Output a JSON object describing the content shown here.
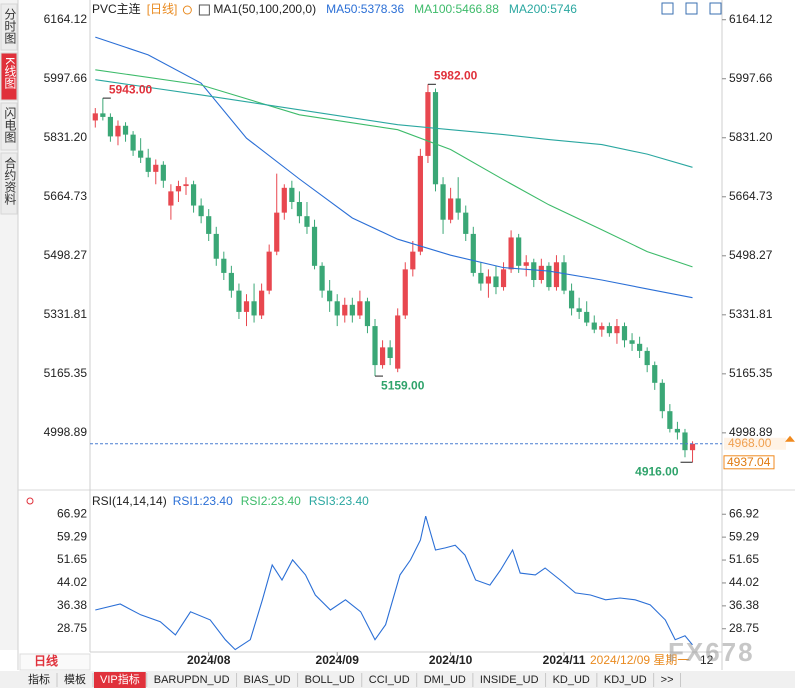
{
  "sidebar_tabs": [
    "分时图",
    "K线图",
    "闪电图",
    "合约资料"
  ],
  "active_tab": 1,
  "chart_data": [
    {
      "type": "candlestick",
      "title": "PVC主连",
      "period": "[日线]",
      "indicator": "MA1(50,100,200,0)",
      "up_color": "#e8474f",
      "down_color": "#3aa776",
      "candles": [
        [
          5880,
          5915,
          5860,
          5900
        ],
        [
          5900,
          5943,
          5880,
          5890
        ],
        [
          5890,
          5900,
          5820,
          5835
        ],
        [
          5835,
          5880,
          5810,
          5865
        ],
        [
          5865,
          5875,
          5820,
          5840
        ],
        [
          5840,
          5850,
          5780,
          5795
        ],
        [
          5795,
          5830,
          5760,
          5775
        ],
        [
          5775,
          5800,
          5720,
          5735
        ],
        [
          5735,
          5770,
          5700,
          5755
        ],
        [
          5755,
          5765,
          5690,
          5710
        ],
        [
          5640,
          5700,
          5600,
          5680
        ],
        [
          5680,
          5710,
          5650,
          5695
        ],
        [
          5695,
          5720,
          5670,
          5700
        ],
        [
          5700,
          5710,
          5620,
          5640
        ],
        [
          5640,
          5660,
          5590,
          5610
        ],
        [
          5610,
          5630,
          5540,
          5560
        ],
        [
          5560,
          5580,
          5470,
          5490
        ],
        [
          5490,
          5510,
          5430,
          5450
        ],
        [
          5450,
          5470,
          5380,
          5400
        ],
        [
          5400,
          5420,
          5320,
          5340
        ],
        [
          5340,
          5390,
          5300,
          5370
        ],
        [
          5370,
          5420,
          5310,
          5330
        ],
        [
          5330,
          5420,
          5320,
          5400
        ],
        [
          5400,
          5530,
          5390,
          5510
        ],
        [
          5510,
          5730,
          5500,
          5620
        ],
        [
          5620,
          5700,
          5600,
          5690
        ],
        [
          5690,
          5710,
          5630,
          5650
        ],
        [
          5650,
          5680,
          5590,
          5610
        ],
        [
          5610,
          5650,
          5560,
          5580
        ],
        [
          5580,
          5600,
          5460,
          5470
        ],
        [
          5470,
          5480,
          5380,
          5400
        ],
        [
          5400,
          5430,
          5340,
          5370
        ],
        [
          5370,
          5390,
          5300,
          5330
        ],
        [
          5330,
          5380,
          5310,
          5360
        ],
        [
          5360,
          5380,
          5310,
          5330
        ],
        [
          5330,
          5400,
          5320,
          5370
        ],
        [
          5370,
          5380,
          5280,
          5300
        ],
        [
          5300,
          5320,
          5159,
          5190
        ],
        [
          5190,
          5260,
          5180,
          5240
        ],
        [
          5240,
          5260,
          5190,
          5210
        ],
        [
          5180,
          5350,
          5170,
          5330
        ],
        [
          5330,
          5480,
          5320,
          5460
        ],
        [
          5460,
          5540,
          5440,
          5510
        ],
        [
          5510,
          5800,
          5500,
          5780
        ],
        [
          5780,
          5982,
          5760,
          5960
        ],
        [
          5960,
          5970,
          5680,
          5700
        ],
        [
          5700,
          5720,
          5560,
          5600
        ],
        [
          5600,
          5690,
          5590,
          5660
        ],
        [
          5660,
          5720,
          5600,
          5620
        ],
        [
          5620,
          5640,
          5540,
          5560
        ],
        [
          5560,
          5580,
          5440,
          5450
        ],
        [
          5450,
          5480,
          5400,
          5420
        ],
        [
          5420,
          5460,
          5380,
          5440
        ],
        [
          5440,
          5470,
          5390,
          5410
        ],
        [
          5410,
          5480,
          5400,
          5460
        ],
        [
          5460,
          5570,
          5450,
          5550
        ],
        [
          5550,
          5560,
          5450,
          5470
        ],
        [
          5470,
          5500,
          5440,
          5480
        ],
        [
          5480,
          5490,
          5410,
          5430
        ],
        [
          5430,
          5490,
          5420,
          5470
        ],
        [
          5470,
          5480,
          5400,
          5410
        ],
        [
          5410,
          5500,
          5400,
          5480
        ],
        [
          5480,
          5500,
          5390,
          5400
        ],
        [
          5400,
          5420,
          5330,
          5350
        ],
        [
          5350,
          5380,
          5320,
          5340
        ],
        [
          5340,
          5370,
          5300,
          5310
        ],
        [
          5310,
          5330,
          5280,
          5290
        ],
        [
          5290,
          5310,
          5270,
          5300
        ],
        [
          5300,
          5310,
          5270,
          5280
        ],
        [
          5280,
          5320,
          5250,
          5300
        ],
        [
          5300,
          5310,
          5240,
          5260
        ],
        [
          5260,
          5280,
          5230,
          5250
        ],
        [
          5250,
          5270,
          5210,
          5230
        ],
        [
          5230,
          5240,
          5170,
          5190
        ],
        [
          5190,
          5200,
          5120,
          5140
        ],
        [
          5140,
          5150,
          5040,
          5060
        ],
        [
          5060,
          5080,
          5000,
          5010
        ],
        [
          5010,
          5030,
          4980,
          5000
        ],
        [
          5000,
          5010,
          4930,
          4950
        ],
        [
          4950,
          4975,
          4916,
          4968
        ]
      ],
      "series": [
        {
          "name": "MA50:5378.36",
          "color": "#2b6fd6",
          "x": [
            0,
            7,
            14,
            20,
            27,
            34,
            40,
            47,
            54,
            60,
            67,
            73,
            79
          ],
          "values": [
            6115,
            6065,
            5985,
            5830,
            5715,
            5605,
            5545,
            5500,
            5465,
            5455,
            5430,
            5405,
            5380
          ]
        },
        {
          "name": "MA100:5466.88",
          "color": "#3dbb6a",
          "x": [
            0,
            14,
            27,
            40,
            47,
            54,
            60,
            67,
            73,
            79
          ],
          "values": [
            6023,
            5980,
            5896,
            5854,
            5798,
            5713,
            5642,
            5572,
            5510,
            5467
          ]
        },
        {
          "name": "MA200:5746",
          "color": "#2aa7a0",
          "x": [
            0,
            14,
            27,
            40,
            47,
            54,
            60,
            67,
            73,
            79
          ],
          "values": [
            5995,
            5952,
            5910,
            5868,
            5854,
            5840,
            5826,
            5812,
            5785,
            5748
          ]
        }
      ],
      "xlim": [
        -0.7,
        82.5
      ],
      "ylim": [
        4880,
        6200
      ],
      "yticks": [
        6164.12,
        5997.66,
        {
          "value": 5831.2,
          "label": "5831.20"
        },
        5664.73,
        5498.27,
        5331.81,
        5165.35,
        4998.89
      ],
      "annotations": [
        {
          "x": 1,
          "value": 5943,
          "label": "5943.00"
        },
        {
          "x": 44,
          "value": 5982,
          "label": "5982.00"
        },
        {
          "x": 37,
          "value": 5159,
          "label": "5159.00"
        },
        {
          "x": 79,
          "value": 4916,
          "label": "4916.00"
        }
      ],
      "last_price": {
        "value": 4968,
        "label": "4968.00"
      },
      "settle": 4937.04
    },
    {
      "type": "line",
      "title": "RSI(14,14,14)",
      "series": [
        {
          "name": "RSI1:23.40",
          "color": "#2b6fd6",
          "x": [
            0,
            3.3,
            6,
            8.6,
            10.6,
            12.6,
            15.2,
            17.2,
            18.5,
            20.5,
            22.1,
            23.4,
            24.7,
            26.1,
            27.8,
            29.1,
            31.1,
            33.1,
            35.1,
            37,
            38.4,
            40.3,
            41.7,
            43,
            43.7,
            45,
            46.3,
            47.6,
            48.9,
            50.3,
            52.2,
            53.6,
            55.2,
            56.2,
            58.2,
            59.5,
            61.5,
            63.5,
            65.5,
            67.5,
            69.4,
            71.4,
            73.4,
            75.4,
            76.7,
            78,
            79
          ],
          "values": [
            35,
            37,
            33.4,
            31.1,
            26.7,
            34.4,
            31.7,
            25.1,
            21.8,
            25.1,
            38.4,
            50,
            45,
            51.7,
            46.7,
            40,
            35,
            38.4,
            34.4,
            25.1,
            30.1,
            46.7,
            51.7,
            58.3,
            66.3,
            55,
            55.7,
            56.6,
            53.3,
            45,
            43.3,
            48.3,
            55,
            47.3,
            46.7,
            49,
            45,
            40.7,
            40,
            38.4,
            39,
            38.4,
            36.7,
            31.7,
            25.1,
            26.4,
            23.4
          ]
        },
        {
          "name": "RSI2:23.40",
          "color": "#3dbb6a"
        },
        {
          "name": "RSI3:23.40",
          "color": "#2aa7a0"
        }
      ],
      "xlim": [
        -0.7,
        82.5
      ],
      "ylim": [
        20,
        70
      ],
      "yticks": [
        66.92,
        59.29,
        51.65,
        44.02,
        36.38,
        28.75
      ],
      "xticks": [
        {
          "value": 15,
          "label": "2024/08"
        },
        {
          "value": 32,
          "label": "2024/09"
        },
        {
          "value": 47,
          "label": "2024/10"
        },
        {
          "value": 62,
          "label": "2024/11"
        }
      ],
      "cursor_date": "2024/12/09 星期一",
      "next_tick": "12"
    }
  ],
  "bottom_tab": "日线",
  "toolbar": [
    "指标",
    "模板",
    "VIP指标",
    "BARUPDN_UD",
    "BIAS_UD",
    "BOLL_UD",
    "CCI_UD",
    "DMI_UD",
    "INSIDE_UD",
    "KD_UD",
    "KDJ_UD",
    ">>"
  ],
  "active_tool": 2,
  "watermark": "FX678"
}
